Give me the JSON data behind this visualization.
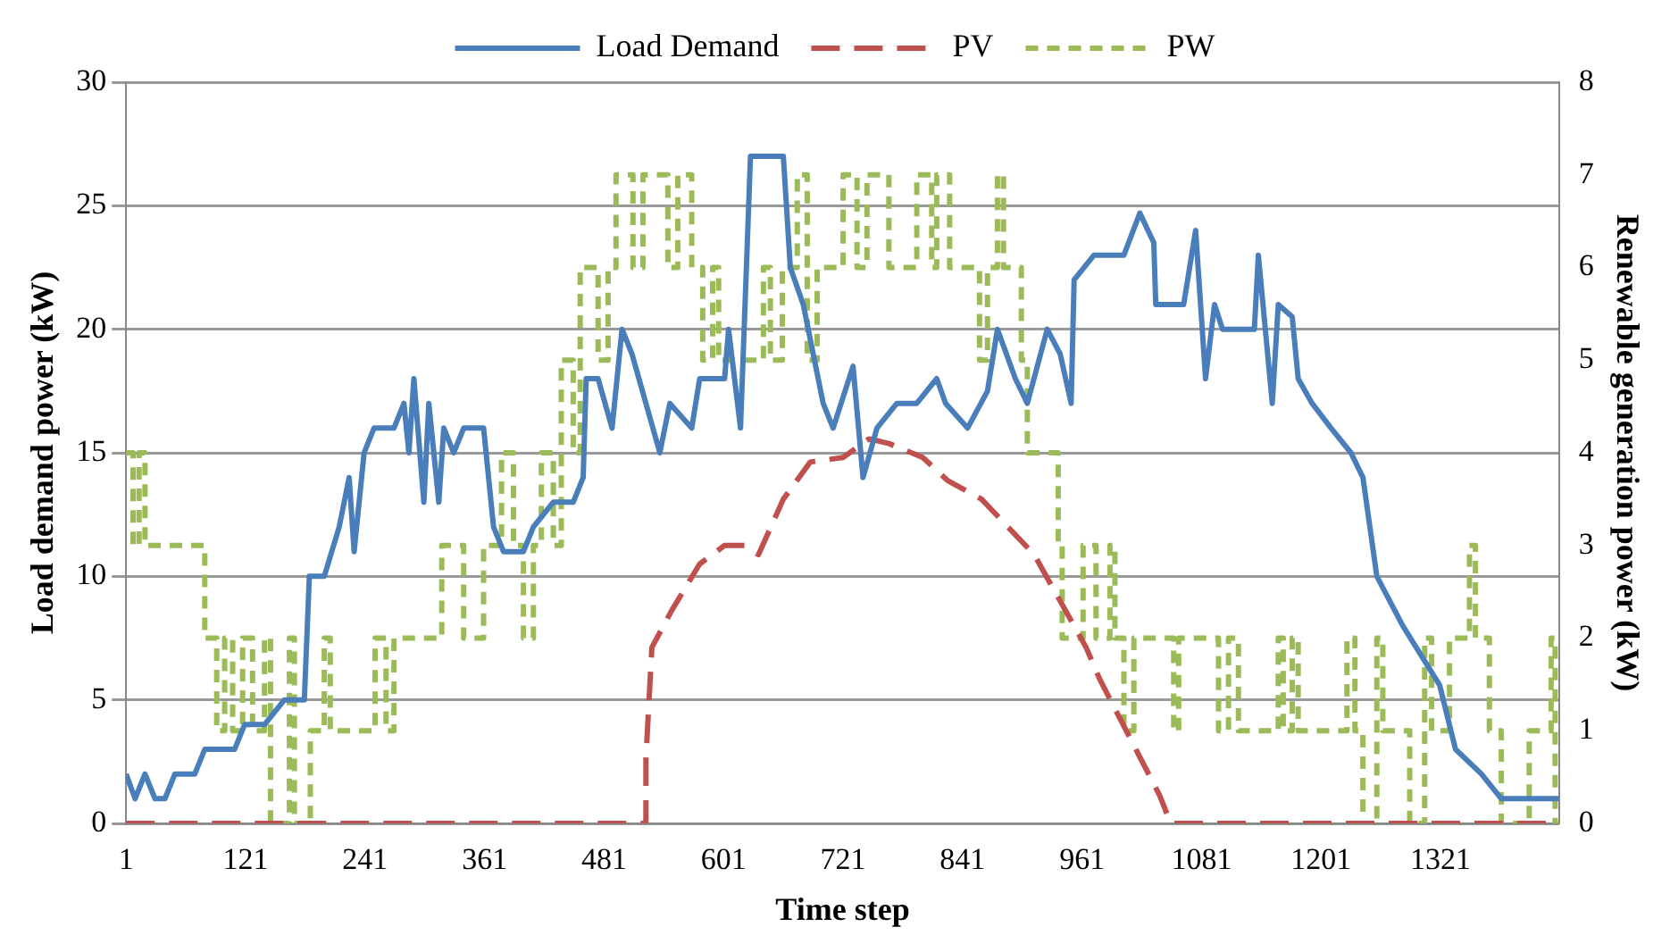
{
  "chart_data": {
    "type": "line",
    "xlabel": "Time step",
    "ylabel": "Load demand power (kW)",
    "y2label": "Renewable generation power (kW)",
    "xlim": [
      1,
      1440
    ],
    "xticks": [
      1,
      121,
      241,
      361,
      481,
      601,
      721,
      841,
      961,
      1081,
      1201,
      1321
    ],
    "ylim": [
      0,
      30
    ],
    "yticks": [
      0,
      5,
      10,
      15,
      20,
      25,
      30
    ],
    "y2lim": [
      0,
      8
    ],
    "y2ticks": [
      0,
      1,
      2,
      3,
      4,
      5,
      6,
      7,
      8
    ],
    "grid": "y",
    "legend": "top",
    "marker": "none",
    "series": [
      {
        "name": "Load Demand",
        "type": "line",
        "line_style": "solid",
        "color": "#4a7ebb",
        "x": [
          1,
          10,
          20,
          30,
          40,
          50,
          70,
          80,
          110,
          120,
          140,
          160,
          180,
          185,
          200,
          215,
          225,
          230,
          240,
          250,
          270,
          280,
          285,
          290,
          300,
          305,
          315,
          320,
          330,
          340,
          360,
          370,
          380,
          400,
          410,
          430,
          450,
          460,
          463,
          475,
          489,
          499,
          509,
          537,
          547,
          569,
          577,
          602,
          606,
          618,
          628,
          661,
          668,
          681,
          691,
          701,
          711,
          731,
          741,
          755,
          775,
          795,
          815,
          824,
          846,
          866,
          876,
          894,
          906,
          926,
          939,
          950,
          953,
          973,
          1003,
          1019,
          1033,
          1035,
          1063,
          1075,
          1085,
          1094,
          1102,
          1134,
          1138,
          1152,
          1158,
          1172,
          1178,
          1192,
          1211,
          1231,
          1243,
          1257,
          1283,
          1320,
          1336,
          1362,
          1382,
          1440
        ],
        "values": [
          2,
          1,
          2,
          1,
          1,
          2,
          2,
          3,
          3,
          4,
          4,
          5,
          5,
          10,
          10,
          12,
          14,
          11,
          15,
          16,
          16,
          17,
          15,
          18,
          13,
          17,
          13,
          16,
          15,
          16,
          16,
          12,
          11,
          11,
          12,
          13,
          13,
          14,
          18,
          18,
          16,
          20,
          19,
          15,
          17,
          16,
          18,
          18,
          20,
          16,
          27,
          27,
          22.5,
          21,
          19,
          17,
          16,
          18.5,
          14,
          16,
          17,
          17,
          18,
          17,
          16,
          17.5,
          20,
          18,
          17,
          20,
          19,
          17,
          22,
          23,
          23,
          24.7,
          23.5,
          21,
          21,
          24,
          18,
          21,
          20,
          20,
          23,
          17,
          21,
          20.5,
          18,
          17,
          16,
          15,
          14,
          10,
          8,
          5.6,
          3,
          2,
          1,
          1
        ]
      },
      {
        "name": "PV",
        "type": "line",
        "line_style": "dashed",
        "axis": "y2",
        "color": "#c0504d",
        "x": [
          1,
          523,
          523,
          529,
          549,
          577,
          602,
          622,
          636,
          661,
          688,
          721,
          747,
          767,
          801,
          826,
          860,
          913,
          965,
          979,
          1039,
          1050,
          1440
        ],
        "values": [
          0,
          0,
          0.7,
          1.9,
          2.3,
          2.8,
          3,
          3,
          2.9,
          3.5,
          3.9,
          3.95,
          4.15,
          4.1,
          3.95,
          3.7,
          3.5,
          2.9,
          1.9,
          1.55,
          0.3,
          0,
          0
        ]
      },
      {
        "name": "PW",
        "type": "step",
        "line_style": "dashed",
        "axis": "y2",
        "color": "#9bbb59",
        "x": [
          1,
          8,
          14,
          20,
          27,
          80,
          92,
          100,
          108,
          118,
          128,
          140,
          146,
          165,
          170,
          186,
          200,
          206,
          251,
          262,
          270,
          291,
          318,
          340,
          360,
          378,
          390,
          400,
          410,
          418,
          430,
          438,
          450,
          457,
          475,
          485,
          493,
          510,
          520,
          545,
          555,
          569,
          580,
          590,
          596,
          610,
          641,
          648,
          660,
          675,
          685,
          695,
          721,
          735,
          745,
          767,
          780,
          795,
          810,
          815,
          828,
          835,
          858,
          866,
          876,
          882,
          900,
          906,
          920,
          937,
          941,
          962,
          975,
          989,
          994,
          1003,
          1013,
          1053,
          1058,
          1098,
          1108,
          1118,
          1158,
          1163,
          1172,
          1178,
          1227,
          1235,
          1243,
          1257,
          1263,
          1290,
          1305,
          1312,
          1330,
          1350,
          1356,
          1370,
          1382,
          1410,
          1432,
          1436,
          1440
        ],
        "values": [
          4,
          3,
          4,
          3,
          3,
          2,
          1,
          2,
          1,
          2,
          1,
          2,
          0,
          2,
          0,
          1,
          2,
          1,
          2,
          1,
          2,
          2,
          3,
          2,
          3,
          4,
          3,
          2,
          3,
          4,
          3,
          5,
          4,
          6,
          5,
          6,
          7,
          6,
          7,
          6,
          7,
          6,
          5,
          6,
          5,
          5,
          6,
          5,
          6,
          7,
          5,
          6,
          7,
          6,
          7,
          6,
          6,
          7,
          6,
          7,
          6,
          6,
          5,
          6,
          7,
          6,
          5,
          4,
          4,
          3,
          2,
          3,
          2,
          3,
          2,
          1,
          2,
          1,
          2,
          1,
          2,
          1,
          2,
          1,
          2,
          1,
          2,
          1,
          0,
          2,
          1,
          0,
          2,
          1,
          2,
          3,
          2,
          1,
          0,
          1,
          2,
          0,
          0
        ]
      }
    ]
  }
}
